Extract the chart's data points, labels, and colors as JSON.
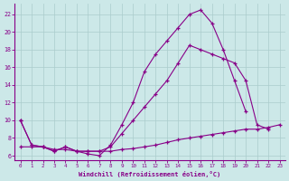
{
  "background_color": "#cce8e8",
  "grid_color": "#aacccc",
  "line_color": "#880088",
  "xlabel": "Windchill (Refroidissement éolien,°C)",
  "xlim": [
    -0.5,
    23.5
  ],
  "ylim": [
    5.5,
    23.2
  ],
  "yticks": [
    6,
    8,
    10,
    12,
    14,
    16,
    18,
    20,
    22
  ],
  "xticks": [
    0,
    1,
    2,
    3,
    4,
    5,
    6,
    7,
    8,
    9,
    10,
    11,
    12,
    13,
    14,
    15,
    16,
    17,
    18,
    19,
    20,
    21,
    22,
    23
  ],
  "line1": {
    "x": [
      0,
      1,
      2,
      3,
      4,
      5,
      6,
      7,
      8,
      9,
      10,
      11,
      12,
      13,
      14,
      15,
      16,
      17,
      18,
      19,
      20
    ],
    "y": [
      10,
      7.2,
      7.0,
      6.5,
      7.0,
      6.5,
      6.2,
      6.0,
      7.2,
      9.5,
      12.0,
      15.5,
      17.5,
      19.0,
      20.5,
      22.0,
      22.5,
      21.0,
      18.0,
      14.5,
      11.0
    ]
  },
  "line2": {
    "x": [
      0,
      1,
      2,
      3,
      4,
      5,
      6,
      7,
      8,
      9,
      10,
      11,
      12,
      13,
      14,
      15,
      16,
      17,
      18,
      19,
      20,
      21,
      22
    ],
    "y": [
      10,
      7.2,
      7.0,
      6.5,
      7.0,
      6.5,
      6.5,
      6.5,
      7.0,
      8.5,
      10.0,
      11.5,
      13.0,
      14.5,
      16.5,
      18.5,
      18.0,
      17.5,
      17.0,
      16.5,
      14.5,
      9.5,
      9.0
    ]
  },
  "line3": {
    "x": [
      0,
      1,
      2,
      3,
      4,
      5,
      6,
      7,
      8,
      9,
      10,
      11,
      12,
      13,
      14,
      15,
      16,
      17,
      18,
      19,
      20,
      21,
      22,
      23
    ],
    "y": [
      7.0,
      7.0,
      7.0,
      6.7,
      6.7,
      6.5,
      6.5,
      6.5,
      6.5,
      6.7,
      6.8,
      7.0,
      7.2,
      7.5,
      7.8,
      8.0,
      8.2,
      8.4,
      8.6,
      8.8,
      9.0,
      9.0,
      9.2,
      9.5
    ]
  }
}
